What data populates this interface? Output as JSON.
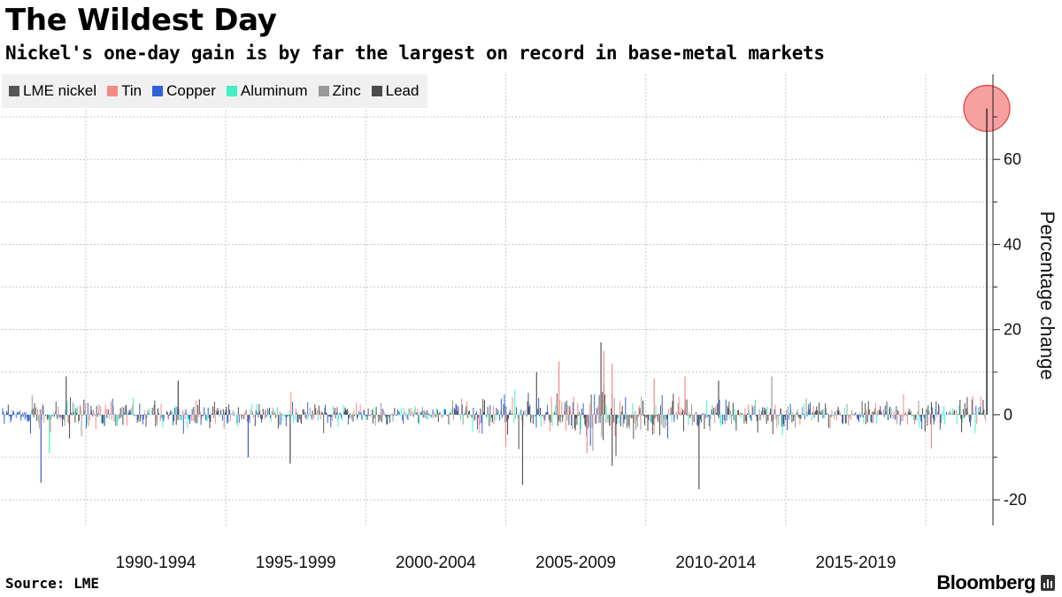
{
  "header": {
    "title": "The Wildest Day",
    "subtitle": "Nickel's one-day gain is by far the largest on record in base-metal markets"
  },
  "footer": {
    "source": "Source: LME",
    "brand": "Bloomberg"
  },
  "colors": {
    "nickel": "#555555",
    "tin": "#f48a84",
    "copper": "#2f62d8",
    "aluminum": "#3ff0c8",
    "zinc": "#9a9a9a",
    "lead": "#4a4a4a",
    "highlight_fill": "#f7a0a0",
    "highlight_stroke": "#e33b3b",
    "grid": "#c8c8c8"
  },
  "chart_data": {
    "type": "bar",
    "title": "The Wildest Day",
    "subtitle": "Nickel's one-day gain is by far the largest on record in base-metal markets",
    "xlabel": "",
    "ylabel": "Percentage change",
    "ylim": [
      -26,
      80
    ],
    "xlim": [
      1987,
      2022.4
    ],
    "yticks": [
      -20,
      0,
      20,
      40,
      60
    ],
    "ytick_labels": [
      "-20",
      "0",
      "20",
      "40",
      "60"
    ],
    "xtick_labels": [
      "1990-1994",
      "1995-1999",
      "2000-2004",
      "2005-2009",
      "2010-2014",
      "2015-2019"
    ],
    "xtick_centers": [
      1992.5,
      1997.5,
      2002.5,
      2007.5,
      2012.5,
      2017.5
    ],
    "xgrid_years": [
      1990,
      1995,
      2000,
      2005,
      2010,
      2015,
      2020
    ],
    "grid": true,
    "legend_position": "top-left",
    "note": "Daily percentage changes of LME base metals; dense series summarized by typical daily range per year and notable spikes",
    "series": [
      {
        "name": "LME nickel",
        "color_key": "nickel"
      },
      {
        "name": "Tin",
        "color_key": "tin"
      },
      {
        "name": "Copper",
        "color_key": "copper"
      },
      {
        "name": "Aluminum",
        "color_key": "aluminum"
      },
      {
        "name": "Zinc",
        "color_key": "zinc"
      },
      {
        "name": "Lead",
        "color_key": "lead"
      }
    ],
    "daily_range_by_year": {
      "years": [
        1987,
        1988,
        1989,
        1990,
        1991,
        1992,
        1993,
        1994,
        1995,
        1996,
        1997,
        1998,
        1999,
        2000,
        2001,
        2002,
        2003,
        2004,
        2005,
        2006,
        2007,
        2008,
        2009,
        2010,
        2011,
        2012,
        2013,
        2014,
        2015,
        2016,
        2017,
        2018,
        2019,
        2020,
        2021,
        2022
      ],
      "typical_abs_pct": [
        3.2,
        4.8,
        4.0,
        3.6,
        3.0,
        2.6,
        2.8,
        3.0,
        2.8,
        2.6,
        2.4,
        2.5,
        2.5,
        2.2,
        2.3,
        2.0,
        2.3,
        3.6,
        3.8,
        5.0,
        5.4,
        6.2,
        5.2,
        4.4,
        4.2,
        3.3,
        3.0,
        3.0,
        3.4,
        3.2,
        3.0,
        2.9,
        2.6,
        3.4,
        2.8,
        3.8
      ]
    },
    "spikes": [
      {
        "series": "Copper",
        "year": 1988.4,
        "value": -16
      },
      {
        "series": "Aluminum",
        "year": 1988.7,
        "value": -9
      },
      {
        "series": "LME nickel",
        "year": 1989.3,
        "value": 9
      },
      {
        "series": "Lead",
        "year": 1993.3,
        "value": 8
      },
      {
        "series": "Copper",
        "year": 1995.8,
        "value": -10
      },
      {
        "series": "Lead",
        "year": 1997.3,
        "value": -11.5
      },
      {
        "series": "Tin",
        "year": 2005.0,
        "value": -7.5
      },
      {
        "series": "LME nickel",
        "year": 2005.6,
        "value": -16.5
      },
      {
        "series": "LME nickel",
        "year": 2006.1,
        "value": 10
      },
      {
        "series": "Tin",
        "year": 2006.9,
        "value": 12.5
      },
      {
        "series": "Tin",
        "year": 2007.9,
        "value": -9
      },
      {
        "series": "LME nickel",
        "year": 2008.4,
        "value": 17
      },
      {
        "series": "Tin",
        "year": 2008.5,
        "value": 15
      },
      {
        "series": "LME nickel",
        "year": 2008.8,
        "value": -12
      },
      {
        "series": "Tin",
        "year": 2008.8,
        "value": 12
      },
      {
        "series": "Tin",
        "year": 2010.3,
        "value": 8.5
      },
      {
        "series": "Tin",
        "year": 2011.4,
        "value": 9
      },
      {
        "series": "LME nickel",
        "year": 2011.9,
        "value": -17.5
      },
      {
        "series": "LME nickel",
        "year": 2012.6,
        "value": 8
      },
      {
        "series": "Zinc",
        "year": 2014.5,
        "value": 9
      },
      {
        "series": "Tin",
        "year": 2020.2,
        "value": -8
      },
      {
        "series": "LME nickel",
        "year": 2022.18,
        "value": 72
      }
    ],
    "highlight": {
      "series": "LME nickel",
      "year": 2022.18,
      "value": 72
    }
  }
}
